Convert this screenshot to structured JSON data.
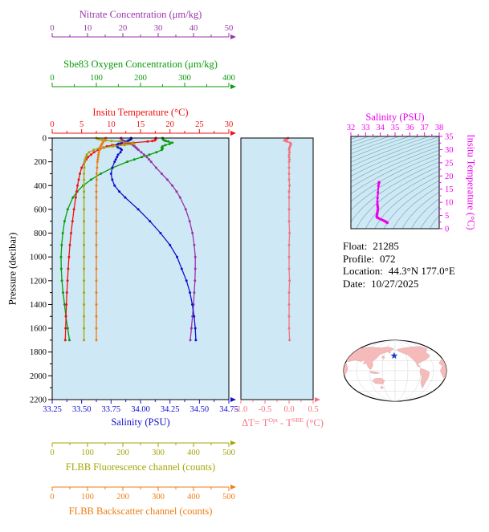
{
  "titles": {
    "nitrate": "Nitrate Concentration (μm/kg)",
    "oxygen": "Sbe83 Oxygen Concentration (μm/kg)",
    "temperature": "Insitu Temperature (°C)",
    "salinity": "Salinity (PSU)",
    "fluorescence": "FLBB Fluorescence channel (counts)",
    "backscatter": "FLBB Backscatter channel (counts)",
    "pressure": "Pressure (decibar)",
    "ts_salinity": "Salinity (PSU)",
    "ts_temperature": "Insitu Temperature (°C)"
  },
  "delta_title": {
    "pre": "ΔT= T",
    "sup1": "Opt",
    "mid": " - T",
    "sup2": "SBE",
    "post": " (°C)"
  },
  "info": {
    "rows": [
      {
        "label": "Float:",
        "value": "21285"
      },
      {
        "label": "Profile:",
        "value": "072"
      },
      {
        "label": "Location:",
        "value": "44.3°N 177.0°E"
      },
      {
        "label": "Date:",
        "value": "10/27/2025"
      }
    ]
  },
  "colors": {
    "nitrate": "#9933aa",
    "oxygen": "#0b9a0b",
    "temperature": "#ee1111",
    "salinity": "#1111cc",
    "fluorescence": "#a5a50a",
    "backscatter": "#ef7d14",
    "delta": "#f4727e",
    "ts": "#ee00ee",
    "pressure": "#000000",
    "plot_bg": "#cee9f5",
    "contour": "#6fa3a8",
    "land": "#f5baba",
    "star": "#1f3fbf",
    "graticule": "#c9c9c9"
  },
  "chart_data": [
    {
      "type": "line",
      "name": "profile-plot",
      "ylabel": "Pressure (decibar)",
      "ylim": [
        0,
        2200
      ],
      "y_ticks": [
        0,
        200,
        400,
        600,
        800,
        1000,
        1200,
        1400,
        1600,
        1800,
        2000,
        2200
      ],
      "y_tick_labels": [
        "0",
        "200",
        "400",
        "600",
        "800",
        "1000",
        "1200",
        "1400",
        "1600",
        "1800",
        "2000",
        "2200"
      ],
      "pressure": [
        0,
        5,
        10,
        15,
        20,
        25,
        30,
        40,
        50,
        60,
        70,
        80,
        90,
        100,
        120,
        140,
        160,
        180,
        200,
        250,
        300,
        350,
        400,
        450,
        500,
        600,
        700,
        800,
        900,
        1000,
        1100,
        1200,
        1300,
        1400,
        1500,
        1600,
        1700
      ],
      "series": [
        {
          "key": "nitrate",
          "label": "Nitrate Concentration (μm/kg)",
          "color": "#9933aa",
          "xlim": [
            0,
            50
          ],
          "ticks": [
            0,
            10,
            20,
            30,
            40,
            50
          ],
          "tick_labels": [
            "0",
            "10",
            "20",
            "30",
            "40",
            "50"
          ],
          "values": [
            19.5,
            19.5,
            19.6,
            19.7,
            19.9,
            20.2,
            20.6,
            21.4,
            22.2,
            22.8,
            23.3,
            23.7,
            24.0,
            24.4,
            25.2,
            26.0,
            26.8,
            27.4,
            28.0,
            29.4,
            31.0,
            32.6,
            34.0,
            35.2,
            36.2,
            37.8,
            38.9,
            39.7,
            40.2,
            40.5,
            40.5,
            40.4,
            40.2,
            40.0,
            39.7,
            39.4,
            39.1
          ]
        },
        {
          "key": "oxygen",
          "label": "Sbe83 Oxygen Concentration (μm/kg)",
          "color": "#0b9a0b",
          "xlim": [
            0,
            400
          ],
          "ticks": [
            0,
            100,
            200,
            300,
            400
          ],
          "tick_labels": [
            "0",
            "100",
            "200",
            "300",
            "400"
          ],
          "values": [
            250,
            250,
            251,
            252,
            254,
            258,
            263,
            272,
            266,
            256,
            250,
            248,
            250,
            248,
            236,
            220,
            203,
            186,
            170,
            137,
            110,
            88,
            70,
            57,
            47,
            35,
            28,
            24,
            21.5,
            20,
            20.5,
            22,
            24.5,
            28,
            31,
            35,
            39
          ]
        },
        {
          "key": "temperature",
          "label": "Insitu Temperature (°C)",
          "color": "#ee1111",
          "xlim": [
            0,
            30
          ],
          "ticks": [
            0,
            5,
            10,
            15,
            20,
            25,
            30
          ],
          "tick_labels": [
            "0",
            "5",
            "10",
            "15",
            "20",
            "25",
            "30"
          ],
          "values": [
            17.6,
            17.6,
            17.6,
            17.5,
            17.4,
            17.0,
            16.2,
            13.8,
            11.6,
            10.2,
            9.3,
            8.7,
            8.2,
            7.8,
            7.1,
            6.6,
            6.1,
            5.8,
            5.5,
            5.0,
            4.7,
            4.5,
            4.3,
            4.15,
            4.0,
            3.7,
            3.45,
            3.2,
            3.0,
            2.85,
            2.72,
            2.6,
            2.5,
            2.42,
            2.35,
            2.28,
            2.22
          ]
        },
        {
          "key": "salinity",
          "label": "Salinity (PSU)",
          "color": "#1111cc",
          "xlim": [
            33.25,
            34.75
          ],
          "ticks": [
            33.25,
            33.5,
            33.75,
            34.0,
            34.25,
            34.5,
            34.75
          ],
          "tick_labels": [
            "33.25",
            "33.50",
            "33.75",
            "34.00",
            "34.25",
            "34.50",
            "34.75"
          ],
          "values": [
            33.92,
            33.92,
            33.92,
            33.91,
            33.9,
            33.89,
            33.87,
            33.84,
            33.81,
            33.8,
            33.8,
            33.81,
            33.83,
            33.84,
            33.83,
            33.81,
            33.8,
            33.79,
            33.78,
            33.76,
            33.75,
            33.76,
            33.78,
            33.82,
            33.87,
            33.98,
            34.08,
            34.17,
            34.25,
            34.31,
            34.35,
            34.39,
            34.42,
            34.44,
            34.455,
            34.465,
            34.47
          ]
        },
        {
          "key": "fluorescence",
          "label": "FLBB Fluorescence channel (counts)",
          "color": "#a5a50a",
          "xlim": [
            0,
            500
          ],
          "ticks": [
            0,
            100,
            200,
            300,
            400,
            500
          ],
          "tick_labels": [
            "0",
            "100",
            "200",
            "300",
            "400",
            "500"
          ],
          "values": [
            125,
            127,
            132,
            140,
            152,
            168,
            190,
            228,
            232,
            205,
            172,
            148,
            130,
            118,
            104,
            98,
            95,
            93,
            92,
            91,
            90,
            90,
            90,
            90,
            90,
            90,
            90,
            90,
            90,
            90,
            90,
            90,
            90,
            90,
            90,
            90,
            90
          ]
        },
        {
          "key": "backscatter",
          "label": "FLBB Backscatter channel (counts)",
          "color": "#ef7d14",
          "xlim": [
            0,
            500
          ],
          "ticks": [
            0,
            100,
            200,
            300,
            400,
            500
          ],
          "tick_labels": [
            "0",
            "100",
            "200",
            "300",
            "400",
            "500"
          ],
          "values": [
            152,
            150,
            149,
            148,
            147,
            146,
            145,
            143,
            141,
            139,
            137,
            136,
            135,
            134,
            132,
            131,
            130,
            129,
            128,
            127,
            126,
            126,
            125,
            125,
            125,
            125,
            125,
            125,
            125,
            125,
            125,
            125,
            125,
            125,
            125,
            125,
            125
          ]
        }
      ]
    },
    {
      "type": "line",
      "name": "temperature-difference-plot",
      "xlabel": "ΔT= T^Opt - T^SBE (°C)",
      "color": "#f4727e",
      "xlim": [
        -1.0,
        0.5
      ],
      "ticks": [
        -1.0,
        -0.5,
        0.0,
        0.5
      ],
      "tick_labels": [
        "-1.0",
        "-0.5",
        "0.0",
        "0.5"
      ],
      "ylim": [
        0,
        2200
      ],
      "values": [
        -0.02,
        -0.03,
        -0.05,
        -0.08,
        -0.1,
        -0.07,
        -0.04,
        0.02,
        0.04,
        0.03,
        0.02,
        0.01,
        0.01,
        0.0,
        0.01,
        0.0,
        0.0,
        0.01,
        0.0,
        0.0,
        0.0,
        0.0,
        0.01,
        0.0,
        0.0,
        0.0,
        0.0,
        0.01,
        0.0,
        0.0,
        0.0,
        0.01,
        0.0,
        0.0,
        0.0,
        0.0,
        0.01
      ]
    },
    {
      "type": "scatter",
      "name": "ts-diagram",
      "xlabel": "Salinity (PSU)",
      "ylabel": "Insitu Temperature (°C)",
      "color": "#ee00ee",
      "xlim": [
        32,
        38
      ],
      "ylim": [
        0,
        35
      ],
      "s_ticks": [
        32,
        33,
        34,
        35,
        36,
        37,
        38
      ],
      "s_tick_labels": [
        "32",
        "33",
        "34",
        "35",
        "36",
        "37",
        "38"
      ],
      "t_ticks": [
        0,
        5,
        10,
        15,
        20,
        25,
        30,
        35
      ],
      "t_tick_labels": [
        "0",
        "5",
        "10",
        "15",
        "20",
        "25",
        "30",
        "35"
      ],
      "isopycnals": {
        "min": 18,
        "max": 30,
        "step": 0.5
      },
      "s": [
        33.92,
        33.92,
        33.92,
        33.91,
        33.9,
        33.89,
        33.87,
        33.84,
        33.81,
        33.8,
        33.8,
        33.81,
        33.83,
        33.84,
        33.83,
        33.81,
        33.8,
        33.79,
        33.78,
        33.76,
        33.75,
        33.76,
        33.78,
        33.82,
        33.87,
        33.98,
        34.08,
        34.17,
        34.25,
        34.31,
        34.35,
        34.39,
        34.42,
        34.44,
        34.455,
        34.465,
        34.47
      ],
      "t": [
        17.6,
        17.6,
        17.6,
        17.5,
        17.4,
        17.0,
        16.2,
        13.8,
        11.6,
        10.2,
        9.3,
        8.7,
        8.2,
        7.8,
        7.1,
        6.6,
        6.1,
        5.8,
        5.5,
        5.0,
        4.7,
        4.5,
        4.3,
        4.15,
        4.0,
        3.7,
        3.45,
        3.2,
        3.0,
        2.85,
        2.72,
        2.6,
        2.5,
        2.42,
        2.35,
        2.28,
        2.22
      ]
    },
    {
      "type": "map",
      "name": "float-location-map",
      "land_color": "#f5baba",
      "ocean_color": "#ffffff",
      "graticule_color": "#c9c9c9",
      "star": {
        "u": -0.017,
        "v": -0.49,
        "color": "#1f3fbf"
      },
      "land": [
        [
          [
            -1.0,
            -0.55
          ],
          [
            -0.85,
            -0.62
          ],
          [
            -0.72,
            -0.72
          ],
          [
            -0.5,
            -0.78
          ],
          [
            -0.3,
            -0.75
          ],
          [
            -0.12,
            -0.78
          ],
          [
            -0.02,
            -0.72
          ],
          [
            -0.08,
            -0.66
          ],
          [
            -0.1,
            -0.56
          ],
          [
            -0.14,
            -0.62
          ],
          [
            -0.22,
            -0.58
          ],
          [
            -0.3,
            -0.52
          ],
          [
            -0.35,
            -0.42
          ],
          [
            -0.44,
            -0.3
          ],
          [
            -0.43,
            -0.16
          ],
          [
            -0.47,
            -0.04
          ],
          [
            -0.52,
            -0.1
          ],
          [
            -0.56,
            -0.24
          ],
          [
            -0.62,
            -0.22
          ],
          [
            -0.58,
            -0.36
          ],
          [
            -0.66,
            -0.3
          ],
          [
            -0.78,
            -0.35
          ],
          [
            -0.9,
            -0.3
          ],
          [
            -1.0,
            -0.35
          ]
        ],
        [
          [
            -0.24,
            -0.5
          ],
          [
            -0.2,
            -0.44
          ],
          [
            -0.23,
            -0.38
          ],
          [
            -0.26,
            -0.44
          ]
        ],
        [
          [
            -0.48,
            0.02
          ],
          [
            -0.38,
            0.04
          ],
          [
            -0.3,
            0.08
          ],
          [
            -0.38,
            0.1
          ],
          [
            -0.48,
            0.07
          ]
        ],
        [
          [
            -0.4,
            0.26
          ],
          [
            -0.28,
            0.24
          ],
          [
            -0.2,
            0.32
          ],
          [
            -0.24,
            0.44
          ],
          [
            -0.38,
            0.42
          ],
          [
            -0.44,
            0.34
          ]
        ],
        [
          [
            -0.26,
            0.5
          ],
          [
            -0.22,
            0.56
          ],
          [
            -0.27,
            0.6
          ],
          [
            -0.28,
            0.53
          ]
        ],
        [
          [
            0.04,
            -0.7
          ],
          [
            0.15,
            -0.74
          ],
          [
            0.3,
            -0.78
          ],
          [
            0.5,
            -0.8
          ],
          [
            0.62,
            -0.72
          ],
          [
            0.6,
            -0.6
          ],
          [
            0.68,
            -0.5
          ],
          [
            0.62,
            -0.38
          ],
          [
            0.52,
            -0.3
          ],
          [
            0.44,
            -0.22
          ],
          [
            0.49,
            -0.12
          ],
          [
            0.44,
            -0.14
          ],
          [
            0.4,
            -0.28
          ],
          [
            0.33,
            -0.4
          ],
          [
            0.24,
            -0.52
          ],
          [
            0.12,
            -0.6
          ],
          [
            0.06,
            -0.64
          ]
        ],
        [
          [
            0.5,
            -0.08
          ],
          [
            0.6,
            -0.02
          ],
          [
            0.67,
            0.06
          ],
          [
            0.65,
            0.22
          ],
          [
            0.58,
            0.42
          ],
          [
            0.53,
            0.58
          ],
          [
            0.5,
            0.4
          ],
          [
            0.52,
            0.2
          ],
          [
            0.48,
            0.04
          ]
        ],
        [
          [
            0.72,
            -0.8
          ],
          [
            0.82,
            -0.82
          ],
          [
            0.8,
            -0.7
          ],
          [
            0.72,
            -0.72
          ]
        ],
        [
          [
            0.92,
            -0.55
          ],
          [
            1.0,
            -0.6
          ],
          [
            1.0,
            0.35
          ],
          [
            0.93,
            0.2
          ],
          [
            0.88,
            0.0
          ],
          [
            0.92,
            -0.15
          ],
          [
            0.85,
            -0.25
          ],
          [
            0.92,
            -0.4
          ]
        ],
        [
          [
            -1.0,
            -0.3
          ],
          [
            -0.94,
            -0.22
          ],
          [
            -0.92,
            -0.05
          ],
          [
            -0.96,
            0.1
          ],
          [
            -1.0,
            0.15
          ]
        ]
      ]
    }
  ]
}
